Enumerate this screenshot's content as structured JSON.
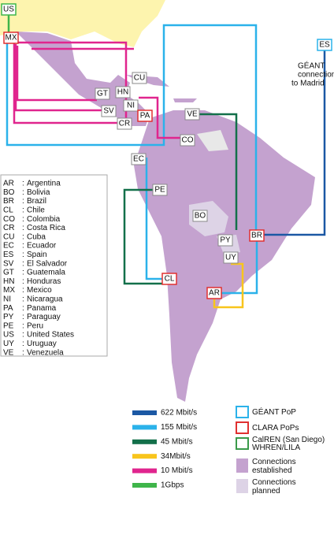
{
  "annotation": [
    "GÉANT",
    "connection",
    "to Madrid"
  ],
  "nodes": [
    {
      "label": "US"
    },
    {
      "label": "MX"
    },
    {
      "label": "CU"
    },
    {
      "label": "GT"
    },
    {
      "label": "HN"
    },
    {
      "label": "NI"
    },
    {
      "label": "SV"
    },
    {
      "label": "CR"
    },
    {
      "label": "PA"
    },
    {
      "label": "CO"
    },
    {
      "label": "VE"
    },
    {
      "label": "EC"
    },
    {
      "label": "PE"
    },
    {
      "label": "BO"
    },
    {
      "label": "PY"
    },
    {
      "label": "BR"
    },
    {
      "label": "CL"
    },
    {
      "label": "UY"
    },
    {
      "label": "AR"
    },
    {
      "label": "ES"
    }
  ],
  "country_codes": [
    {
      "code": "AR",
      "name": "Argentina"
    },
    {
      "code": "BO",
      "name": "Bolivia"
    },
    {
      "code": "BR",
      "name": "Brazil"
    },
    {
      "code": "CL",
      "name": "Chile"
    },
    {
      "code": "CO",
      "name": "Colombia"
    },
    {
      "code": "CR",
      "name": "Costa Rica"
    },
    {
      "code": "CU",
      "name": "Cuba"
    },
    {
      "code": "EC",
      "name": "Ecuador"
    },
    {
      "code": "ES",
      "name": "Spain"
    },
    {
      "code": "SV",
      "name": "El Salvador"
    },
    {
      "code": "GT",
      "name": "Guatemala"
    },
    {
      "code": "HN",
      "name": "Honduras"
    },
    {
      "code": "MX",
      "name": "Mexico"
    },
    {
      "code": "NI",
      "name": "Nicaragua"
    },
    {
      "code": "PA",
      "name": "Panama"
    },
    {
      "code": "PY",
      "name": "Paraguay"
    },
    {
      "code": "PE",
      "name": "Peru"
    },
    {
      "code": "US",
      "name": "United States"
    },
    {
      "code": "UY",
      "name": "Uruguay"
    },
    {
      "code": "VE",
      "name": "Venezuela"
    }
  ],
  "bandwidth_legend": [
    {
      "label": "622 Mbit/s",
      "color": "#1b58a4"
    },
    {
      "label": "155 Mbit/s",
      "color": "#2bb2ea"
    },
    {
      "label": "45 Mbit/s",
      "color": "#13704a"
    },
    {
      "label": "34Mbit/s",
      "color": "#f8c51c"
    },
    {
      "label": "10 Mbit/s",
      "color": "#e0258e"
    },
    {
      "label": "1Gbps",
      "color": "#3fb54a"
    }
  ],
  "pop_legend": [
    {
      "label": "GÉANT PoP",
      "color": "#2bb2ea"
    },
    {
      "label": "CLARA PoPs",
      "color": "#e03030"
    },
    {
      "label": "CalREN (San Diego)\nWHREN/LILA",
      "color": "#3a9a4a"
    }
  ],
  "area_legend": [
    {
      "label": "Connections\nestablished",
      "color": "#c4a2cf"
    },
    {
      "label": "Connections\nplanned",
      "color": "#ddd3e6"
    }
  ]
}
